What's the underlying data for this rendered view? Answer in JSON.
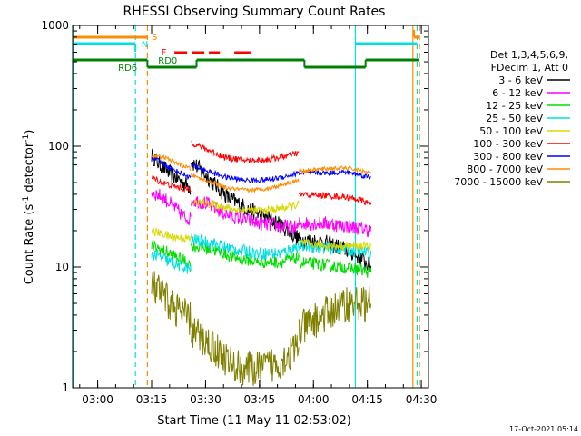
{
  "chart_data": {
    "type": "line",
    "title": "RHESSI Observing Summary Count Rates",
    "xlabel": "Start Time (11-May-11 02:53:02)",
    "ylabel_main": "Count Rate (s",
    "ylabel_sup1": "-1",
    "ylabel_mid": " detector",
    "ylabel_sup2": "-1",
    "ylabel_end": ")",
    "yscale": "log",
    "ylim": [
      1,
      1000
    ],
    "xlim": [
      "02:53:02",
      "04:32:00"
    ],
    "y_ticks": [
      "1",
      "10",
      "100",
      "1000"
    ],
    "x_ticks": [
      "03:00",
      "03:15",
      "03:30",
      "03:45",
      "04:00",
      "04:15",
      "04:30"
    ],
    "timestamp": "17-Oct-2021 05:14",
    "legend": {
      "placement": "right",
      "header_lines": [
        "Det 1,3,4,5,6,9,",
        "FDecim 1, Att 0"
      ]
    },
    "series": [
      {
        "name": "3 - 6 keV",
        "color": "#000000"
      },
      {
        "name": "6 - 12 keV",
        "color": "#ff00ff"
      },
      {
        "name": "12 - 25 keV",
        "color": "#00dd00"
      },
      {
        "name": "25 - 50 keV",
        "color": "#00e0e0"
      },
      {
        "name": "50 - 100 keV",
        "color": "#d8d800"
      },
      {
        "name": "100 - 300 keV",
        "color": "#ff0000"
      },
      {
        "name": "300 - 800 keV",
        "color": "#0000ff"
      },
      {
        "name": "800 - 7000 keV",
        "color": "#ff8c00"
      },
      {
        "name": "7000 - 15000 keV",
        "color": "#808000"
      }
    ],
    "flags": [
      {
        "label": "S",
        "color": "#ff8c00"
      },
      {
        "label": "N",
        "color": "#00e0e0"
      },
      {
        "label": "F",
        "color": "#ff0000"
      },
      {
        "label": "RD0",
        "color": "#008000"
      },
      {
        "label": "RD6",
        "color": "#008000"
      }
    ]
  }
}
